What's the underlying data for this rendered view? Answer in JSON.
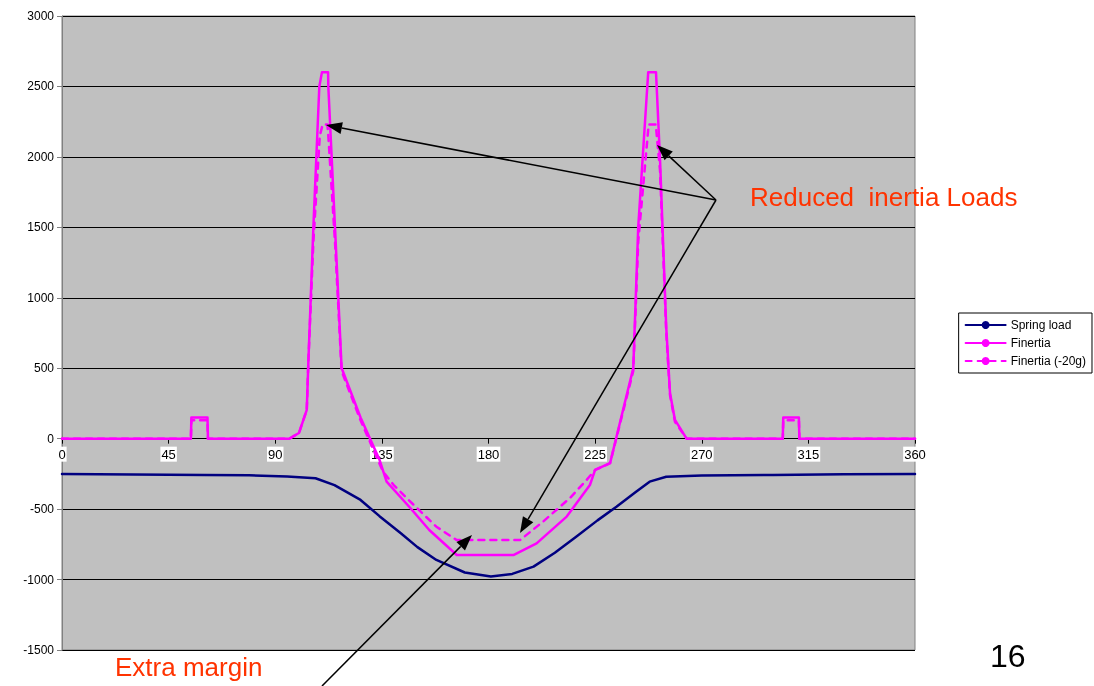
{
  "chart_data": {
    "type": "line",
    "xlim": [
      0,
      360
    ],
    "xticks": [
      0,
      45,
      90,
      135,
      180,
      225,
      270,
      315,
      360
    ],
    "ylim": [
      -1500,
      3000
    ],
    "yticks": [
      -1500,
      -1000,
      -500,
      0,
      500,
      1000,
      1500,
      2000,
      2500,
      3000
    ],
    "grid": "y",
    "legend": "right",
    "marker": "none",
    "annotations": [
      "Reduced  inertia Loads",
      "Extra margin",
      "16"
    ],
    "series": [
      {
        "name": "Spring load",
        "color": "#000080",
        "line_style": "solid",
        "x": [
          0,
          60,
          79,
          95,
          107,
          115,
          126,
          134,
          143,
          150,
          158,
          170,
          181,
          190,
          199,
          208,
          217,
          226,
          234,
          242,
          248,
          255,
          270,
          300,
          330,
          360
        ],
        "values": [
          -250,
          -258,
          -260,
          -268,
          -281,
          -330,
          -435,
          -550,
          -672,
          -770,
          -861,
          -950,
          -979,
          -960,
          -908,
          -810,
          -696,
          -580,
          -483,
          -380,
          -305,
          -270,
          -262,
          -258,
          -252,
          -250
        ]
      },
      {
        "name": "Finertia",
        "color": "#ff00ff",
        "line_style": "solid",
        "x": [
          0,
          54.4,
          54.6,
          61.4,
          61.6,
          96,
          100,
          103.3,
          104,
          106.1,
          108.6,
          109.7,
          112.3,
          112.4,
          115.2,
          118,
          126,
          134,
          137,
          147,
          155,
          166.6,
          190.5,
          200.3,
          213,
          222.8,
          225,
          231.3,
          241.1,
          243.2,
          247.4,
          250.7,
          252.4,
          255,
          256.6,
          258.7,
          263.6,
          304.2,
          304.4,
          311,
          311.2,
          360
        ],
        "values": [
          0,
          0,
          150,
          150,
          0,
          0,
          40,
          204,
          557,
          1505,
          2500,
          2600,
          2600,
          2500,
          1505,
          502,
          150,
          -150,
          -305,
          -492,
          -648,
          -826,
          -826,
          -743,
          -553,
          -329,
          -222,
          -174,
          502,
          1505,
          2600,
          2600,
          1977,
          795,
          324,
          133,
          0,
          0,
          150,
          150,
          0,
          0
        ]
      },
      {
        "name": "Finertia (-20g)",
        "color": "#ff00ff",
        "line_style": "dashed",
        "x": [
          0,
          54.4,
          54.6,
          61.4,
          61.6,
          96,
          100,
          103.3,
          104,
          106.1,
          108.8,
          110,
          112,
          112.4,
          115.2,
          118,
          126,
          135.5,
          140,
          147,
          158,
          166.6,
          193.3,
          203,
          214.4,
          221.4,
          225,
          231.3,
          241.1,
          243.2,
          247.6,
          250.6,
          252.4,
          255,
          256.6,
          258.7,
          263.6,
          304.2,
          304.4,
          311,
          311.2,
          360
        ],
        "values": [
          0,
          0,
          130,
          130,
          0,
          0,
          40,
          204,
          557,
          1400,
          2150,
          2230,
          2230,
          2150,
          1400,
          480,
          130,
          -234,
          -329,
          -447,
          -625,
          -720,
          -720,
          -589,
          -421,
          -293,
          -222,
          -174,
          480,
          1400,
          2230,
          2230,
          1900,
          760,
          310,
          120,
          0,
          0,
          130,
          130,
          0,
          0
        ]
      }
    ]
  }
}
